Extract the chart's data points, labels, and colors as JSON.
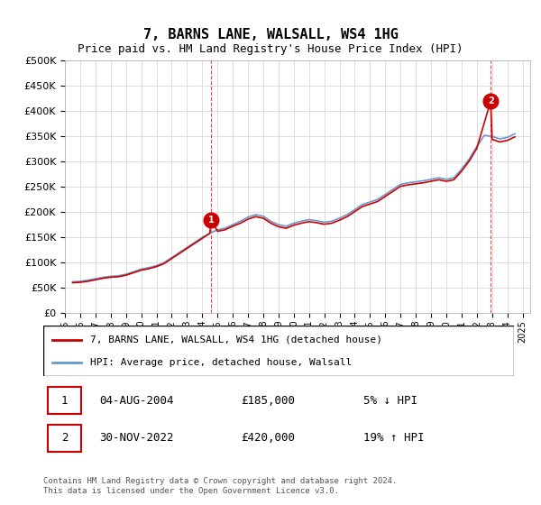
{
  "title": "7, BARNS LANE, WALSALL, WS4 1HG",
  "subtitle": "Price paid vs. HM Land Registry's House Price Index (HPI)",
  "line1_label": "7, BARNS LANE, WALSALL, WS4 1HG (detached house)",
  "line2_label": "HPI: Average price, detached house, Walsall",
  "line1_color": "#cc0000",
  "line2_color": "#6699cc",
  "marker1_label": "1",
  "marker2_label": "2",
  "transaction1": {
    "date": "04-AUG-2004",
    "price": 185000,
    "year": 2004.58,
    "pct": "5%",
    "dir": "↓"
  },
  "transaction2": {
    "date": "30-NOV-2022",
    "price": 420000,
    "year": 2022.91,
    "pct": "19%",
    "dir": "↑"
  },
  "footer": "Contains HM Land Registry data © Crown copyright and database right 2024.\nThis data is licensed under the Open Government Licence v3.0.",
  "ylim": [
    0,
    500000
  ],
  "yticks": [
    0,
    50000,
    100000,
    150000,
    200000,
    250000,
    300000,
    350000,
    400000,
    450000,
    500000
  ],
  "xlim_start": 1995.0,
  "xlim_end": 2025.5,
  "background_color": "#ffffff",
  "grid_color": "#dddddd",
  "hpi_data": {
    "years": [
      1995.5,
      1996.0,
      1996.5,
      1997.0,
      1997.5,
      1998.0,
      1998.5,
      1999.0,
      1999.5,
      2000.0,
      2000.5,
      2001.0,
      2001.5,
      2002.0,
      2002.5,
      2003.0,
      2003.5,
      2004.0,
      2004.5,
      2005.0,
      2005.5,
      2006.0,
      2006.5,
      2007.0,
      2007.5,
      2008.0,
      2008.5,
      2009.0,
      2009.5,
      2010.0,
      2010.5,
      2011.0,
      2011.5,
      2012.0,
      2012.5,
      2013.0,
      2013.5,
      2014.0,
      2014.5,
      2015.0,
      2015.5,
      2016.0,
      2016.5,
      2017.0,
      2017.5,
      2018.0,
      2018.5,
      2019.0,
      2019.5,
      2020.0,
      2020.5,
      2021.0,
      2021.5,
      2022.0,
      2022.5,
      2023.0,
      2023.5,
      2024.0,
      2024.5
    ],
    "values": [
      62000,
      63000,
      65000,
      68000,
      71000,
      73000,
      74000,
      77000,
      82000,
      87000,
      90000,
      94000,
      100000,
      110000,
      120000,
      130000,
      140000,
      150000,
      158000,
      165000,
      168000,
      175000,
      182000,
      190000,
      195000,
      192000,
      182000,
      175000,
      172000,
      178000,
      182000,
      185000,
      183000,
      180000,
      182000,
      188000,
      195000,
      205000,
      215000,
      220000,
      225000,
      235000,
      245000,
      255000,
      258000,
      260000,
      262000,
      265000,
      268000,
      265000,
      268000,
      285000,
      305000,
      330000,
      352000,
      350000,
      345000,
      348000,
      355000
    ]
  },
  "property_data": {
    "years": [
      1995.5,
      1996.0,
      1996.5,
      1997.0,
      1997.5,
      1998.0,
      1998.5,
      1999.0,
      1999.5,
      2000.0,
      2000.5,
      2001.0,
      2001.5,
      2002.0,
      2002.5,
      2003.0,
      2003.5,
      2004.0,
      2004.5,
      2004.58,
      2005.0,
      2005.5,
      2006.0,
      2006.5,
      2007.0,
      2007.5,
      2008.0,
      2008.5,
      2009.0,
      2009.5,
      2010.0,
      2010.5,
      2011.0,
      2011.5,
      2012.0,
      2012.5,
      2013.0,
      2013.5,
      2014.0,
      2014.5,
      2015.0,
      2015.5,
      2016.0,
      2016.5,
      2017.0,
      2017.5,
      2018.0,
      2018.5,
      2019.0,
      2019.5,
      2020.0,
      2020.5,
      2021.0,
      2021.5,
      2022.0,
      2022.91,
      2023.0,
      2023.5,
      2024.0,
      2024.5
    ],
    "values": [
      60000,
      61000,
      63000,
      66000,
      69000,
      71000,
      72000,
      75000,
      80000,
      85000,
      88000,
      92000,
      98000,
      108000,
      118000,
      128000,
      138000,
      148000,
      158000,
      185000,
      162000,
      165000,
      172000,
      178000,
      186000,
      191000,
      188000,
      178000,
      171000,
      168000,
      174000,
      178000,
      181000,
      179000,
      176000,
      178000,
      184000,
      191000,
      201000,
      211000,
      216000,
      221000,
      231000,
      241000,
      251000,
      254000,
      256000,
      258000,
      261000,
      264000,
      261000,
      264000,
      281000,
      301000,
      326000,
      420000,
      344000,
      339000,
      342000,
      349000
    ]
  }
}
